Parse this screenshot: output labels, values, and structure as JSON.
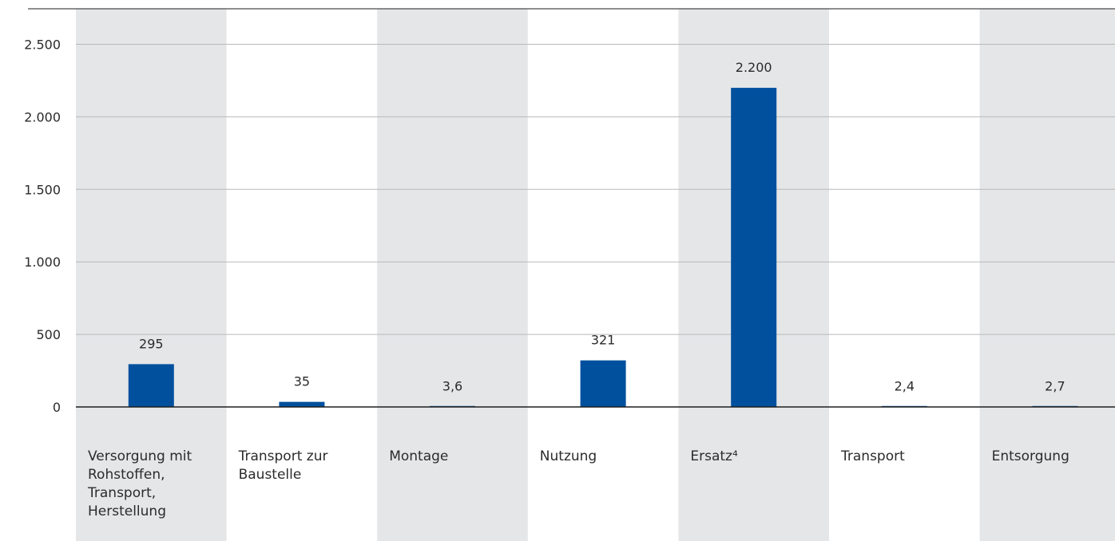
{
  "chart_data": {
    "type": "bar",
    "categories": [
      [
        "Versorgung mit",
        "Rohstoffen,",
        "Transport,",
        "Herstellung"
      ],
      [
        "Transport zur",
        "Baustelle"
      ],
      [
        "Montage"
      ],
      [
        "Nutzung"
      ],
      [
        "Ersatz⁴"
      ],
      [
        "Transport"
      ],
      [
        "Entsorgung"
      ]
    ],
    "values": [
      295,
      35,
      3.6,
      321,
      2200,
      2.4,
      2.7
    ],
    "value_labels": [
      "295",
      "35",
      "3,6",
      "321",
      "2.200",
      "2,4",
      "2,7"
    ],
    "y_ticks": [
      0,
      500,
      1000,
      1500,
      2000,
      2500
    ],
    "y_tick_labels": [
      "0",
      "500",
      "1.000",
      "1.500",
      "2.000",
      "2.500"
    ],
    "ylim": [
      0,
      2500
    ],
    "grid": true,
    "colors": {
      "bar": "#00509e",
      "band": "#e5e6e8",
      "grid": "#b9b9b9",
      "axis": "#1e1e1e",
      "text": "#2b2b2b"
    }
  }
}
